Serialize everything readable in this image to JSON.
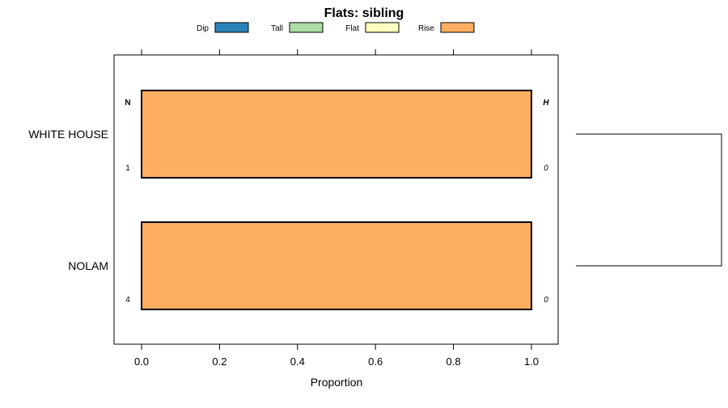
{
  "chart_data": {
    "type": "bar",
    "orientation": "horizontal",
    "stacked": true,
    "title": "Flats: sibling",
    "xlabel": "Proportion",
    "ylabel": "",
    "xlim": [
      -0.07,
      1.07
    ],
    "x_ticks": [
      0.0,
      0.2,
      0.4,
      0.6,
      0.8,
      1.0
    ],
    "x_tick_labels": [
      "0.0",
      "0.2",
      "0.4",
      "0.6",
      "0.8",
      "1.0"
    ],
    "legend_position": "top",
    "legend": [
      {
        "name": "Dip",
        "color": "#2b83ba"
      },
      {
        "name": "Tall",
        "color": "#abdda4"
      },
      {
        "name": "Flat",
        "color": "#ffffbf"
      },
      {
        "name": "Rise",
        "color": "#fdae61"
      }
    ],
    "categories": [
      "WHITE HOUSE",
      "NOLAM"
    ],
    "series": [
      {
        "name": "Dip",
        "values": [
          0,
          0
        ]
      },
      {
        "name": "Tall",
        "values": [
          0,
          0
        ]
      },
      {
        "name": "Flat",
        "values": [
          0,
          0
        ]
      },
      {
        "name": "Rise",
        "values": [
          1.0,
          1.0
        ]
      }
    ],
    "column_headers": {
      "left": "N",
      "right": "H"
    },
    "n_values": [
      "1",
      "4"
    ],
    "h_values": [
      "0",
      "0"
    ],
    "dendrogram": true
  }
}
